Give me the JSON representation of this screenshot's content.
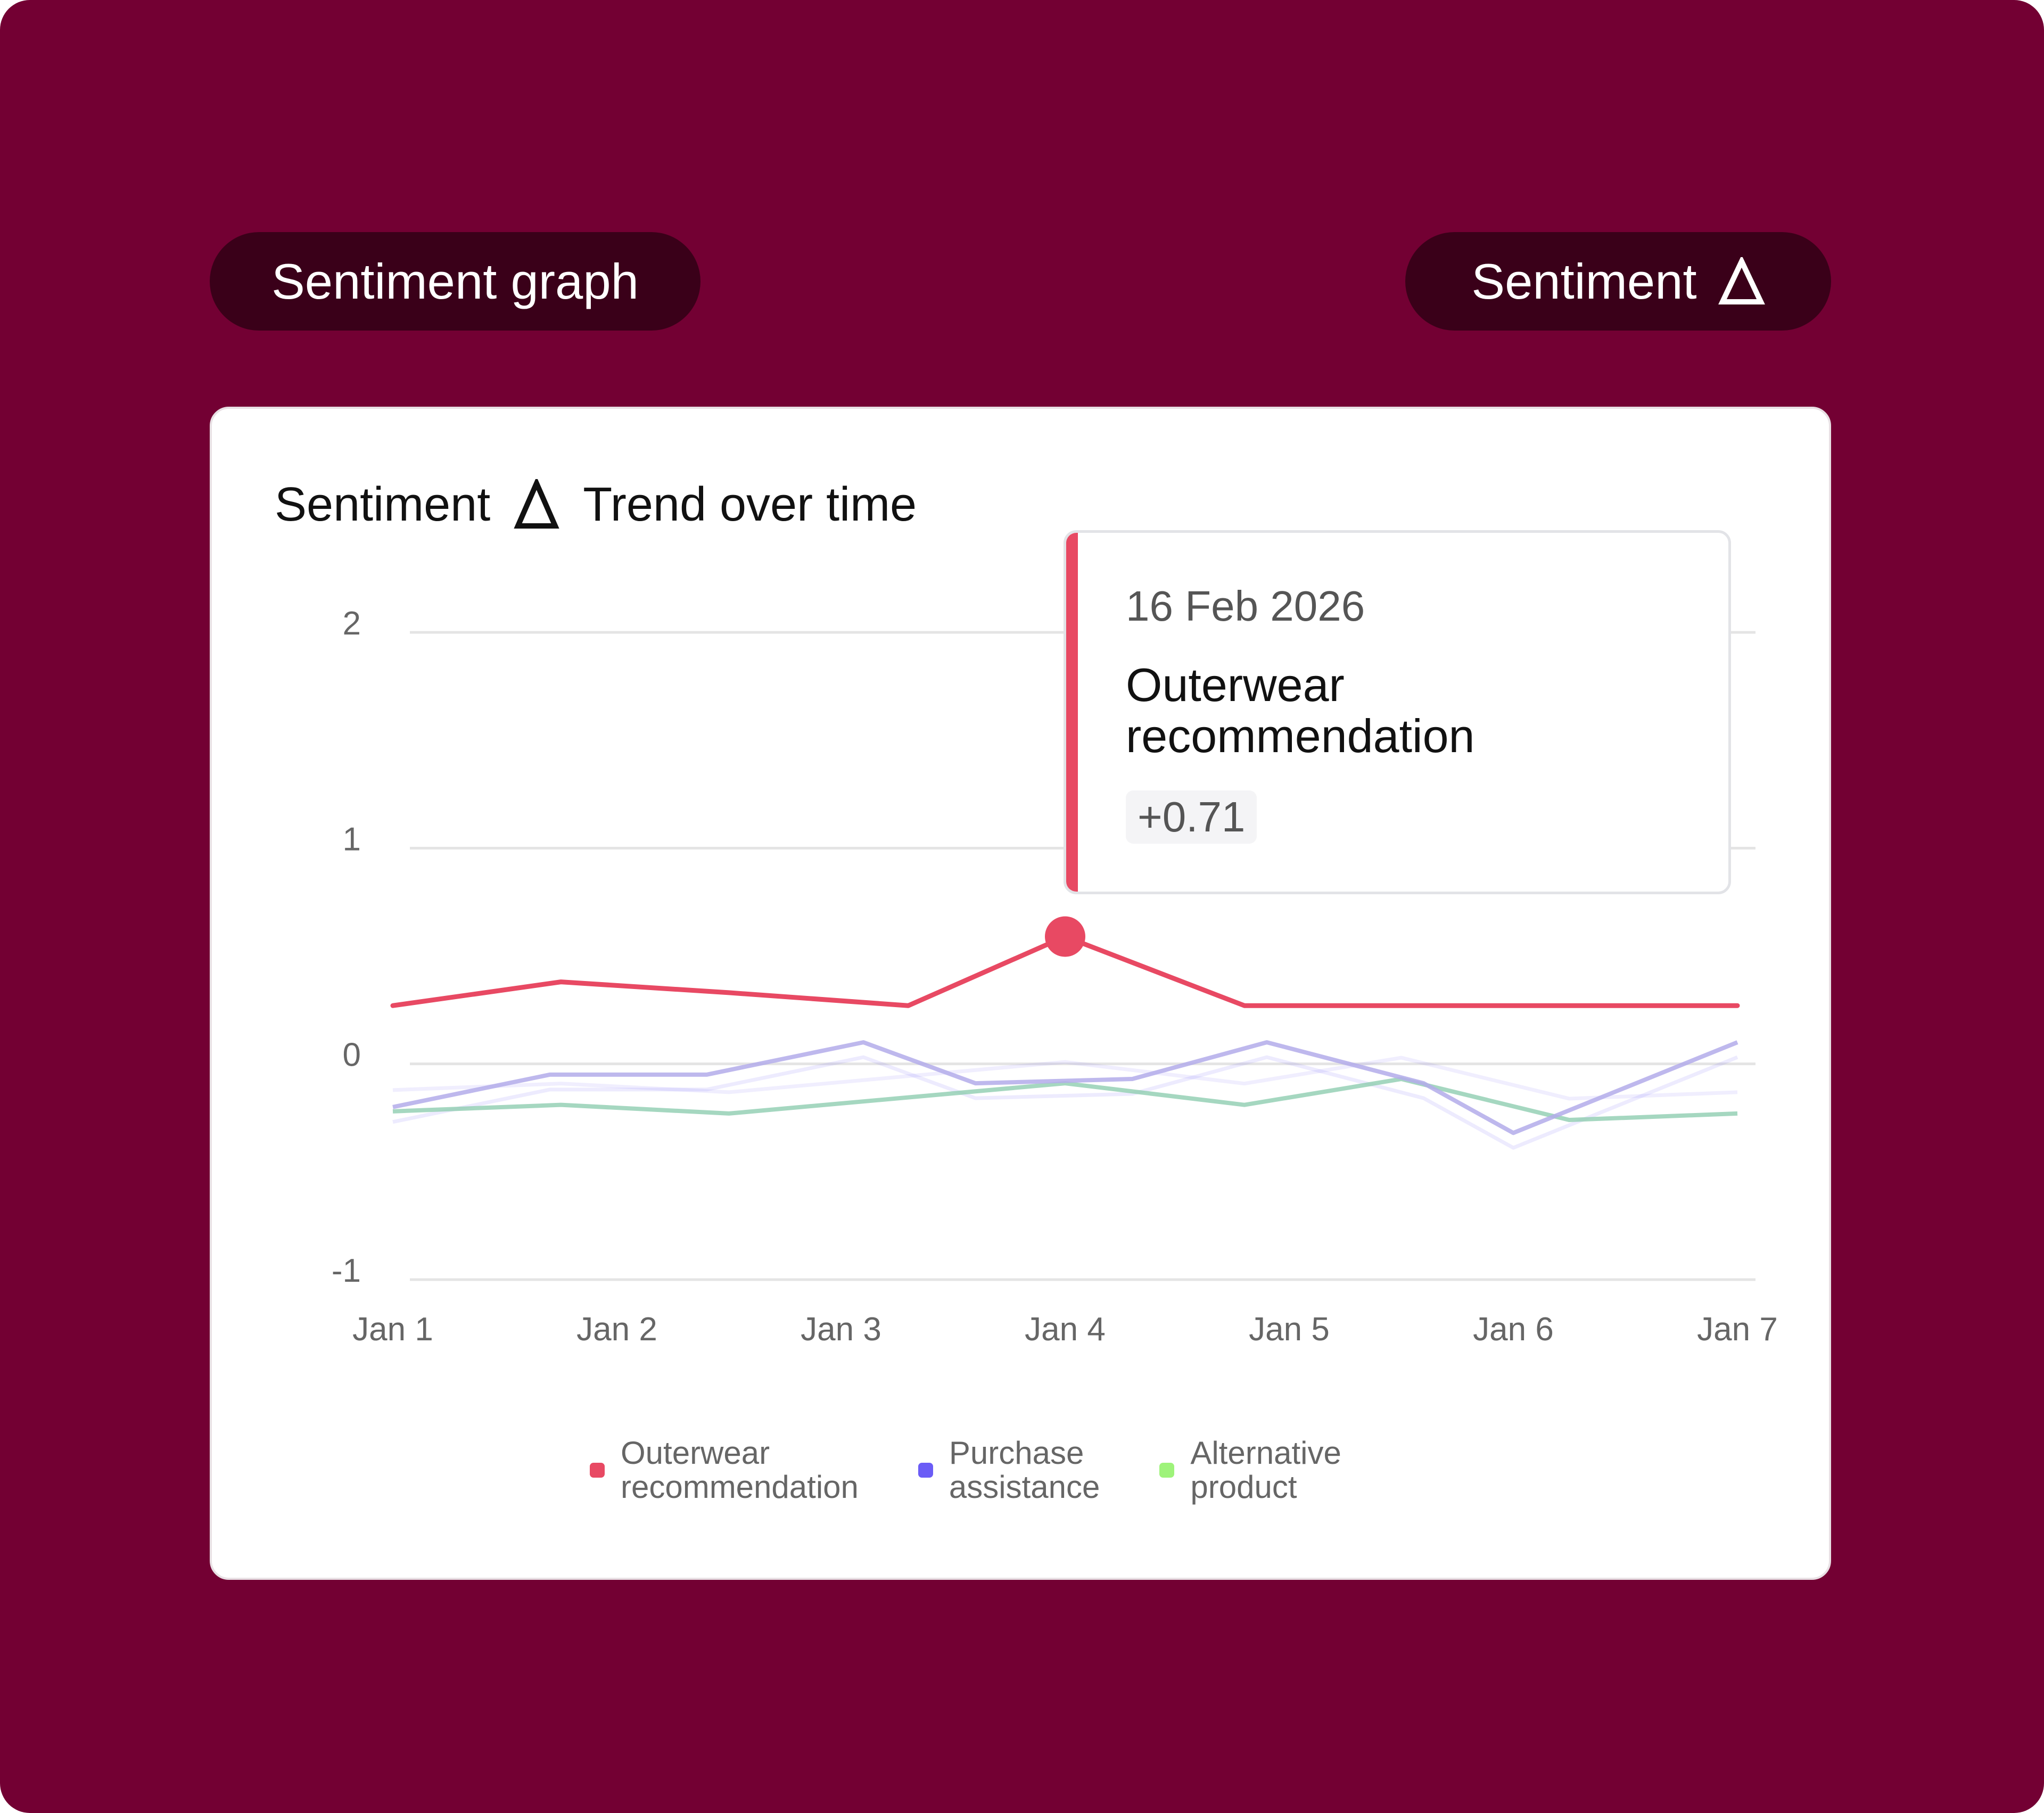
{
  "header": {
    "left_pill_label": "Sentiment graph",
    "right_pill_label": "Sentiment"
  },
  "card": {
    "title_prefix": "Sentiment",
    "title_suffix": "Trend over time"
  },
  "tooltip": {
    "date": "16 Feb 2026",
    "series_name": "Outerwear recommendation",
    "value": "+0.71"
  },
  "colors": {
    "background": "#730033",
    "pill": "#3a0019",
    "outerwear": "#e84963",
    "purchase": "#6b5cf6",
    "alternative": "#9ef37a"
  },
  "chart_data": {
    "type": "line",
    "x": [
      "Jan 1",
      "Jan 2",
      "Jan 3",
      "Jan 4",
      "Jan 5",
      "Jan 6",
      "Jan 7"
    ],
    "ylim": [
      -1,
      2
    ],
    "yticks": [
      "2",
      "1",
      "0",
      "-1"
    ],
    "grid": true,
    "legend_position": "bottom",
    "series": [
      {
        "name": "Outerwear recommendation",
        "color": "#e84963",
        "x": [
          0,
          0.75,
          1.5,
          2.3,
          3.0,
          3.8,
          4.5,
          5.25,
          6.0
        ],
        "values": [
          0.27,
          0.38,
          0.33,
          0.27,
          0.59,
          0.27,
          0.27,
          0.27,
          0.27
        ]
      },
      {
        "name": "Purchase assistance",
        "color": "#6b5cf6",
        "x": [
          0,
          0.7,
          1.4,
          2.1,
          2.6,
          3.3,
          3.9,
          4.6,
          5.0,
          5.5,
          6.0
        ],
        "values": [
          -0.2,
          -0.05,
          -0.05,
          0.1,
          -0.09,
          -0.07,
          0.1,
          -0.09,
          -0.32,
          -0.11,
          0.1
        ]
      },
      {
        "name": "Alternative product",
        "color": "#9ef37a",
        "x": [
          0,
          0.75,
          1.5,
          2.25,
          3.0,
          3.8,
          4.5,
          5.25,
          6.0
        ],
        "values": [
          -0.22,
          -0.19,
          -0.23,
          -0.16,
          -0.09,
          -0.19,
          -0.07,
          -0.26,
          -0.23
        ]
      }
    ]
  }
}
